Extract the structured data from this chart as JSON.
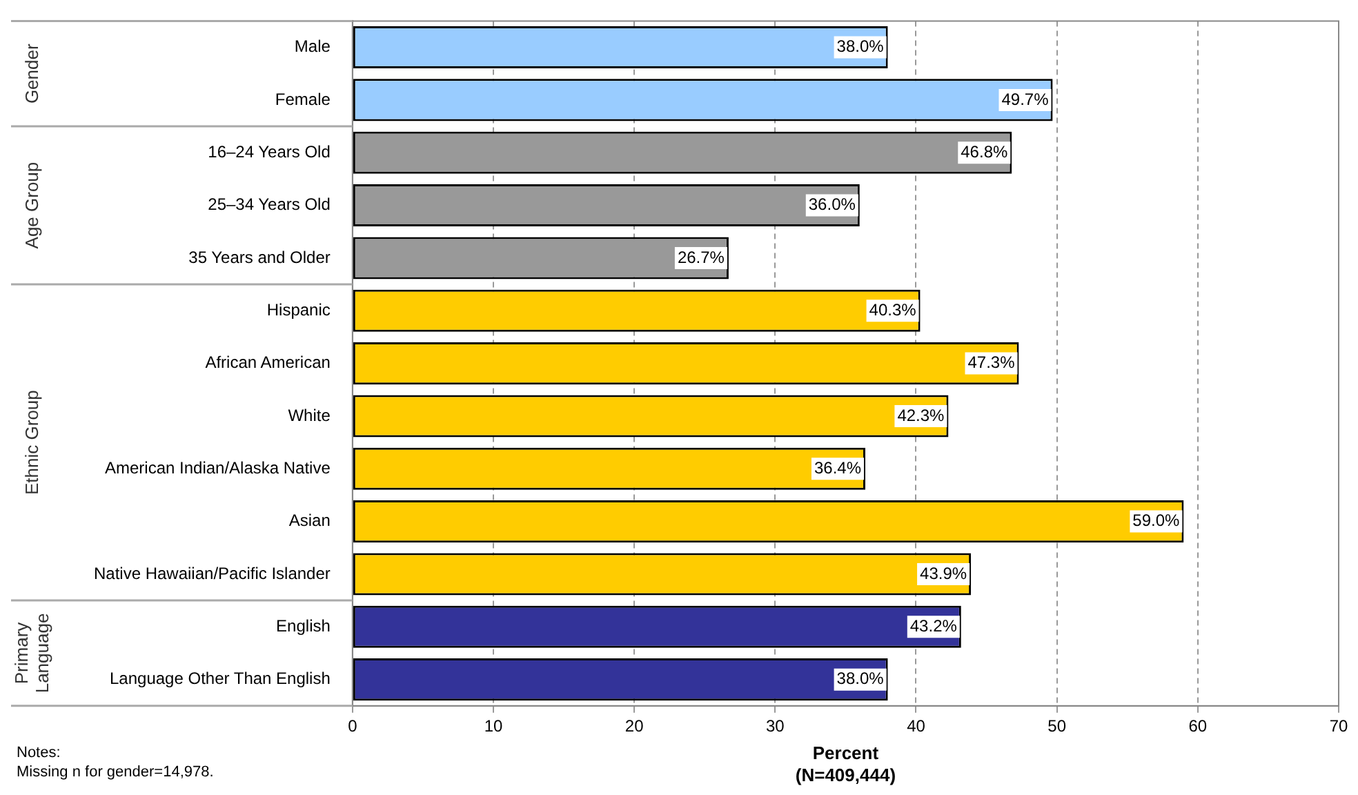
{
  "chart_data": {
    "type": "bar",
    "orientation": "horizontal",
    "categories": [
      "Male",
      "Female",
      "16–24 Years Old",
      "25–34 Years Old",
      "35 Years and Older",
      "Hispanic",
      "African American",
      "White",
      "American Indian/Alaska Native",
      "Asian",
      "Native Hawaiian/Pacific Islander",
      "English",
      "Language Other Than English"
    ],
    "values": [
      38.0,
      49.7,
      46.8,
      36.0,
      26.7,
      40.3,
      47.3,
      42.3,
      36.4,
      59.0,
      43.9,
      43.2,
      38.0
    ],
    "value_labels": [
      "38.0%",
      "49.7%",
      "46.8%",
      "36.0%",
      "26.7%",
      "40.3%",
      "47.3%",
      "42.3%",
      "36.4%",
      "59.0%",
      "43.9%",
      "43.2%",
      "38.0%"
    ],
    "colors": [
      "#99ccff",
      "#99ccff",
      "#999999",
      "#999999",
      "#999999",
      "#ffcc00",
      "#ffcc00",
      "#ffcc00",
      "#ffcc00",
      "#ffcc00",
      "#ffcc00",
      "#333399",
      "#333399"
    ],
    "xlabel": "Percent\n(N=409,444)",
    "xlim": [
      0,
      70
    ],
    "xticks": [
      0,
      10,
      20,
      30,
      40,
      50,
      60,
      70
    ],
    "grid": "x",
    "legend": false,
    "annotations": [
      "Gender",
      "Age Group",
      "Ethnic Group",
      "Primary\nLanguage",
      "Notes:",
      "Missing n for gender=14,978."
    ]
  }
}
